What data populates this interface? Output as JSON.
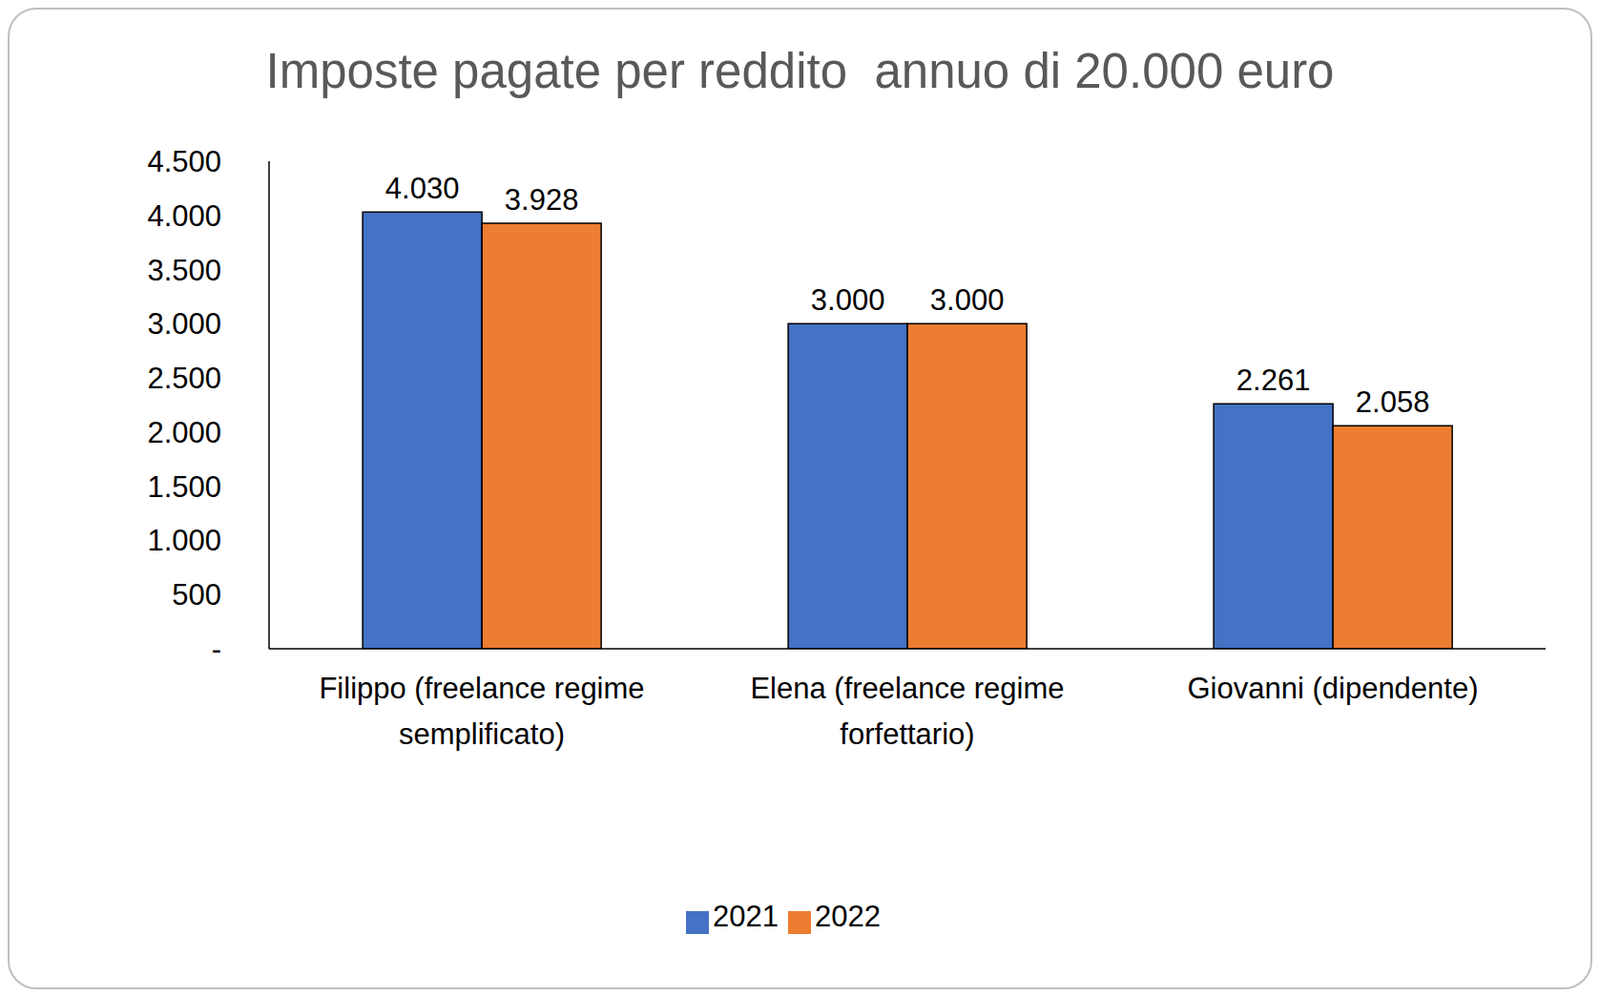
{
  "chart_data": {
    "type": "bar",
    "title": "Imposte pagate per reddito  annuo di 20.000 euro",
    "categories": [
      "Filippo (freelance regime semplificato)",
      "Elena (freelance regime forfettario)",
      "Giovanni (dipendente)"
    ],
    "series": [
      {
        "name": "2021",
        "color": "#4472c4",
        "values": [
          4030,
          3000,
          2261
        ],
        "value_labels": [
          "4.030",
          "3.000",
          "2.261"
        ]
      },
      {
        "name": "2022",
        "color": "#ed7d31",
        "values": [
          3928,
          3000,
          2058
        ],
        "value_labels": [
          "3.928",
          "3.000",
          "2.058"
        ]
      }
    ],
    "ylim": [
      0,
      4500
    ],
    "yticks": [
      {
        "value": 0,
        "label": "-"
      },
      500,
      {
        "value": 1000,
        "label": "1.000"
      },
      {
        "value": 1500,
        "label": "1.500"
      },
      {
        "value": 2000,
        "label": "2.000"
      },
      {
        "value": 2500,
        "label": "2.500"
      },
      {
        "value": 3000,
        "label": "3.000"
      },
      {
        "value": 3500,
        "label": "3.500"
      },
      {
        "value": 4000,
        "label": "4.000"
      },
      {
        "value": 4500,
        "label": "4.500"
      }
    ],
    "grid": false,
    "legend": "bottom",
    "data_labels": true
  }
}
